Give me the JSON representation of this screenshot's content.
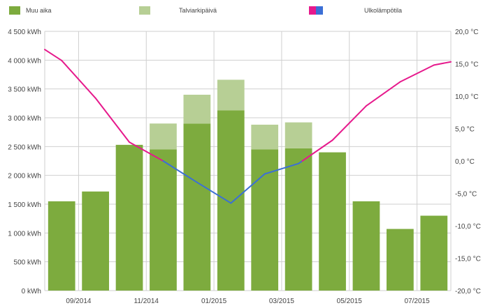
{
  "legend": {
    "items": [
      {
        "label": "Muu aika",
        "color": "#7dab3e"
      },
      {
        "label": "Talviarkipäivä",
        "color": "#b7cf95"
      },
      {
        "label": "Ulkolämpötila",
        "colors": [
          "#e6198c",
          "#3b6fd6"
        ]
      }
    ]
  },
  "chart_data": {
    "type": "bar",
    "x_ticks": [
      "09/2014",
      "11/2014",
      "01/2015",
      "03/2015",
      "05/2015",
      "07/2015"
    ],
    "y_left": {
      "unit": "kWh",
      "ylim": [
        0,
        4500
      ],
      "tick_labels": [
        "0 kWh",
        "500 kWh",
        "1 000 kWh",
        "1 500 kWh",
        "2 000 kWh",
        "2 500 kWh",
        "3 000 kWh",
        "3 500 kWh",
        "4 000 kWh",
        "4 500 kWh"
      ]
    },
    "y_right": {
      "unit": "°C",
      "ylim": [
        -20,
        20
      ],
      "tick_labels": [
        "-20,0 °C",
        "-15,0 °C",
        "-10,0 °C",
        "-5,0 °C",
        "0,0 °C",
        "5,0 °C",
        "10,0 °C",
        "15,0 °C",
        "20,0 °C"
      ]
    },
    "categories": [
      "08/2014",
      "09/2014",
      "10/2014",
      "11/2014",
      "12/2014",
      "01/2015",
      "02/2015",
      "03/2015",
      "04/2015",
      "05/2015",
      "06/2015",
      "07/2015"
    ],
    "series": [
      {
        "name": "Muu aika",
        "values": [
          1550,
          1720,
          2530,
          2450,
          2900,
          3130,
          2450,
          2470,
          2400,
          1550,
          1070,
          1300
        ],
        "color": "#7dab3e"
      },
      {
        "name": "Talviarkipäivä",
        "values": [
          0,
          0,
          0,
          450,
          500,
          530,
          430,
          450,
          0,
          0,
          0,
          0
        ],
        "color": "#b7cf95"
      }
    ],
    "temperature": {
      "name": "Ulkolämpötila",
      "x": [
        "07/2014",
        "08/2014",
        "09/2014",
        "10/2014",
        "11/2014",
        "12/2014",
        "01/2015",
        "02/2015",
        "03/2015",
        "04/2015",
        "05/2015",
        "06/2015",
        "07/2015",
        "08/2015"
      ],
      "values": [
        17.2,
        15.5,
        9.7,
        2.9,
        0.0,
        -3.3,
        -6.5,
        -2.0,
        -0.4,
        3.2,
        8.5,
        12.2,
        14.8,
        15.3
      ],
      "color_above_zero": "#e6198c",
      "color_below_zero": "#3b6fd6"
    },
    "grid": true
  }
}
